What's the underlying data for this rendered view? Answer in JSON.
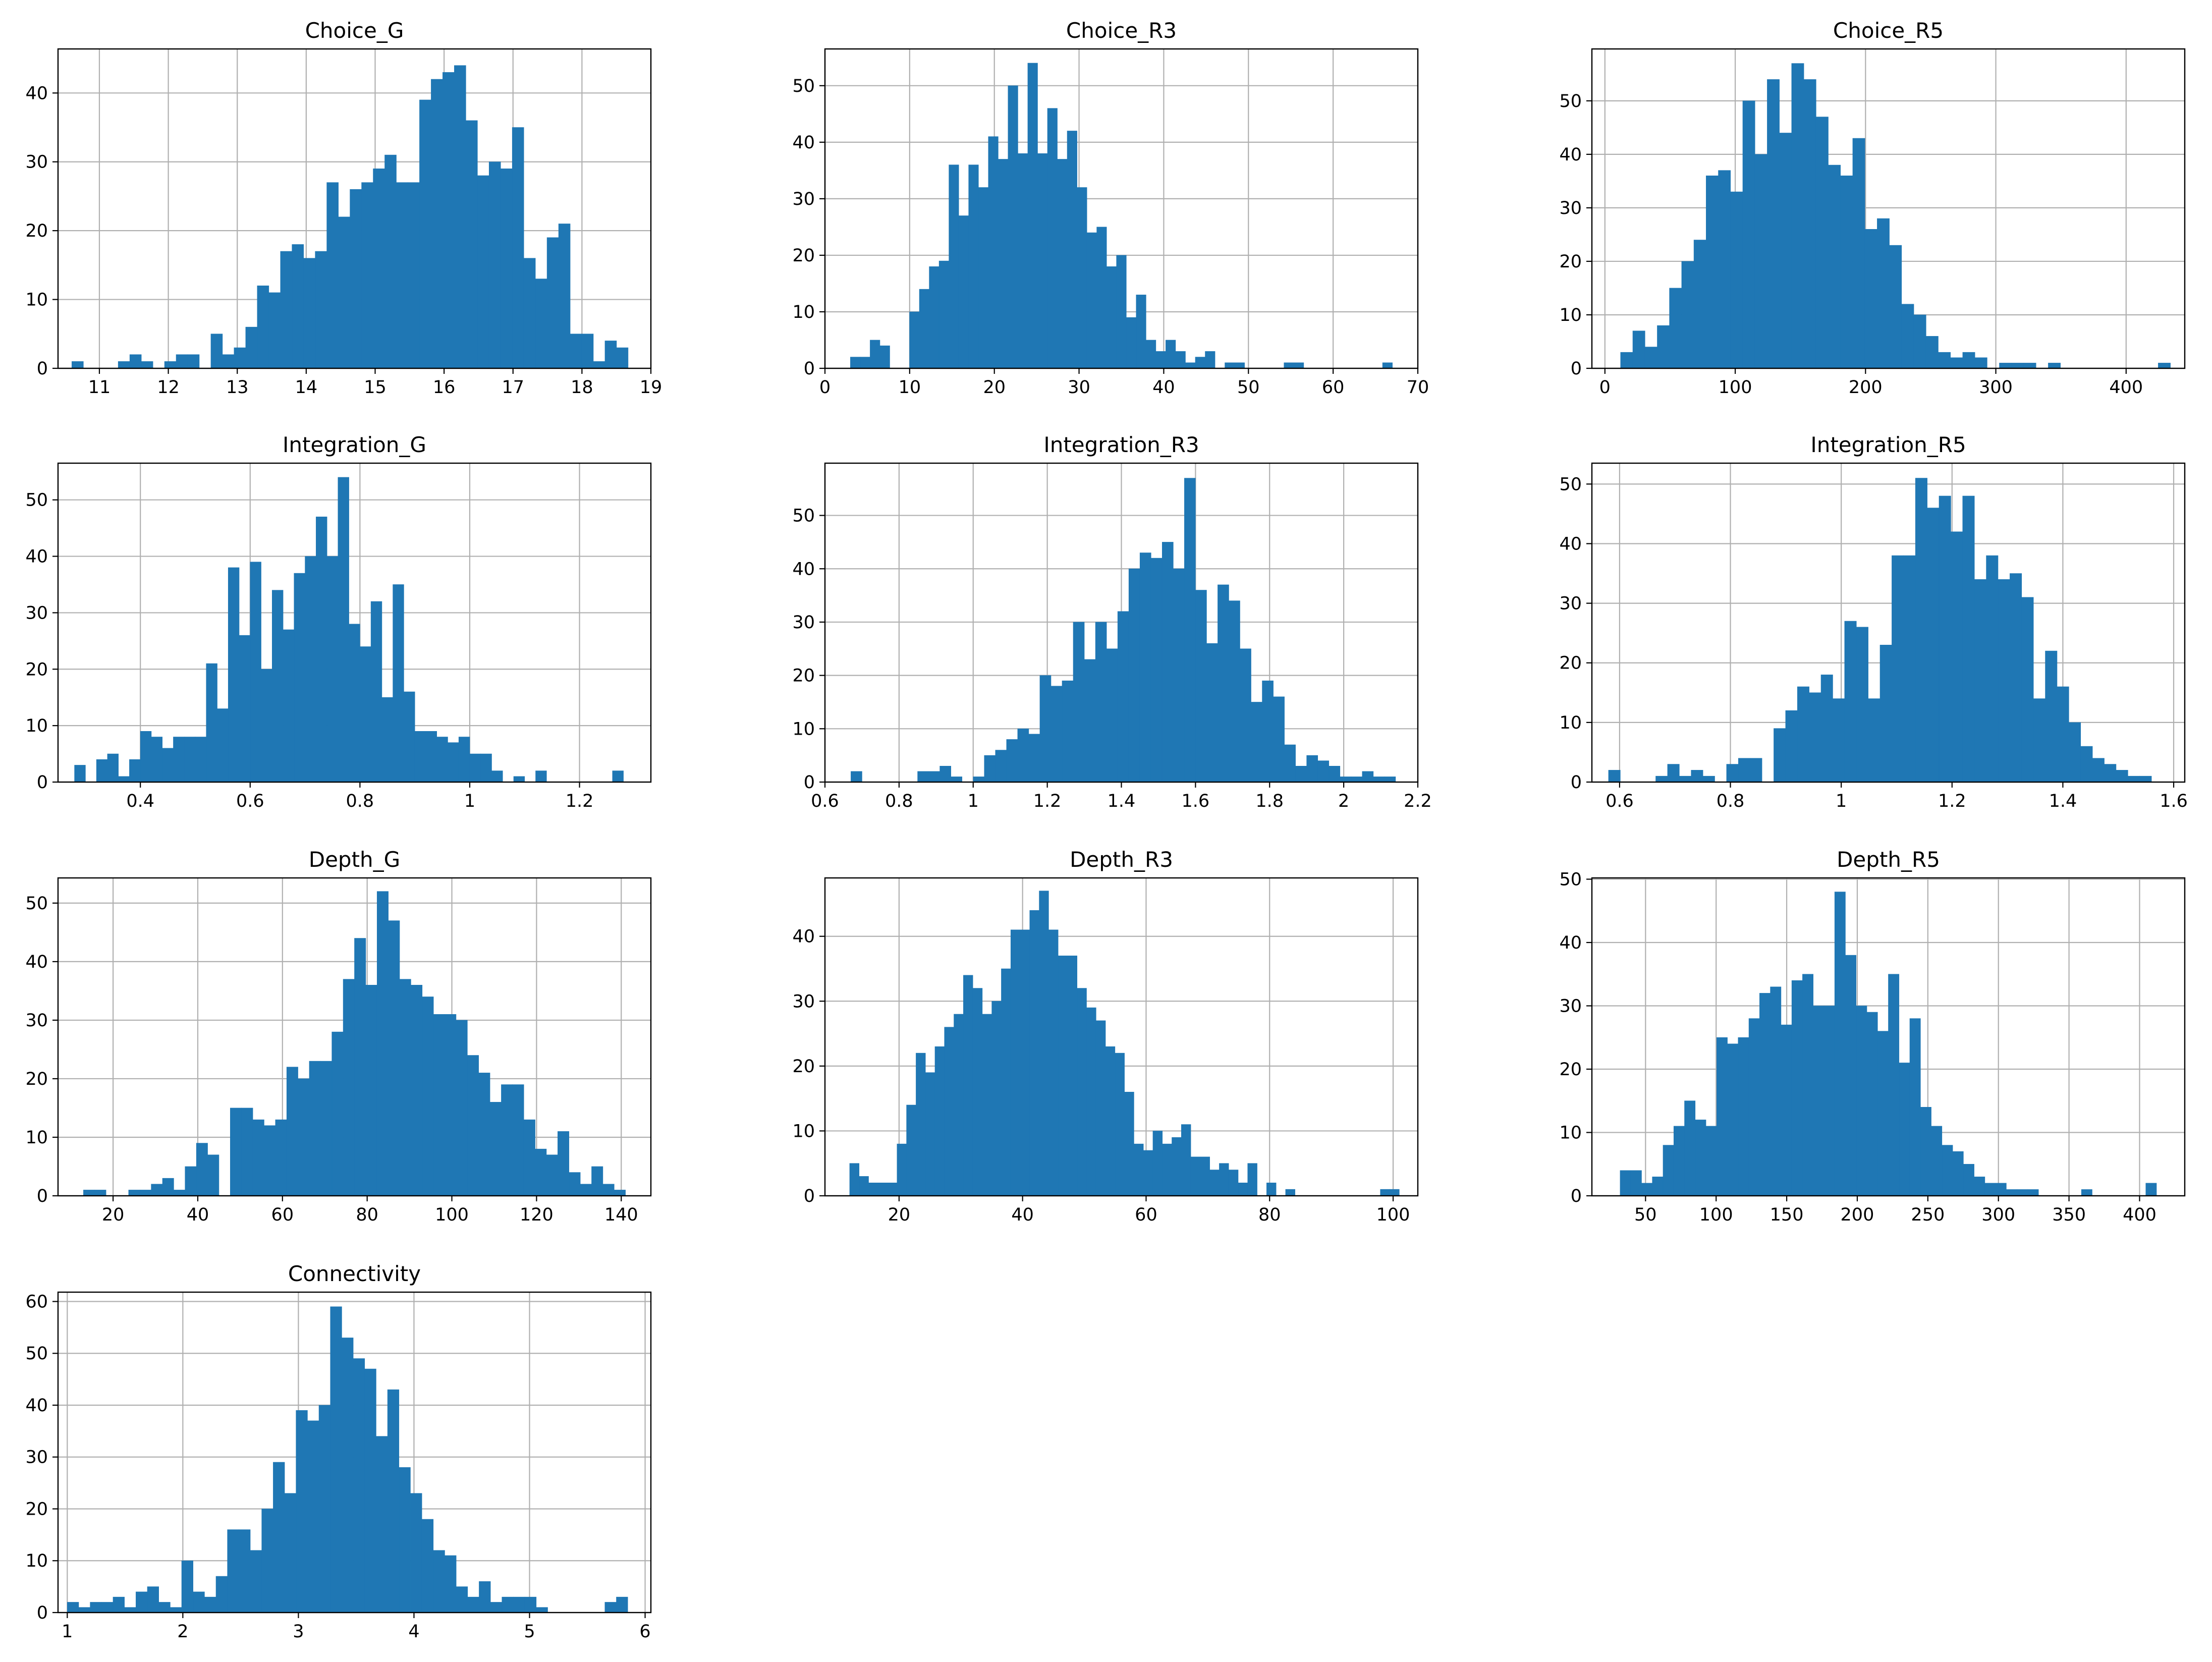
{
  "figure": {
    "bar_color": "#1f77b4",
    "grid_color": "#b0b0b0",
    "background": "#ffffff"
  },
  "chart_data": [
    {
      "type": "bar",
      "title": "Choice_G",
      "xlabel": "",
      "ylabel": "",
      "grid": true,
      "xlim": [
        10.4,
        19
      ],
      "ylim": [
        0,
        46.4
      ],
      "xticks": [
        11,
        12,
        13,
        14,
        15,
        16,
        17,
        18,
        19
      ],
      "yticks": [
        0,
        10,
        20,
        30,
        40
      ],
      "bins": [
        10.6,
        18.67
      ],
      "counts": [
        1,
        0,
        0,
        0,
        1,
        2,
        1,
        0,
        1,
        2,
        2,
        0,
        5,
        2,
        3,
        6,
        12,
        11,
        17,
        18,
        16,
        17,
        27,
        22,
        26,
        27,
        29,
        31,
        27,
        27,
        39,
        42,
        43,
        44,
        36,
        28,
        30,
        29,
        35,
        16,
        13,
        19,
        21,
        5,
        5,
        1,
        4,
        3
      ]
    },
    {
      "type": "bar",
      "title": "Choice_R3",
      "xlabel": "",
      "ylabel": "",
      "grid": true,
      "xlim": [
        0,
        70
      ],
      "ylim": [
        0,
        56.5
      ],
      "xticks": [
        0,
        10,
        20,
        30,
        40,
        50,
        60,
        70
      ],
      "yticks": [
        0,
        10,
        20,
        30,
        40,
        50
      ],
      "bins": [
        3.0,
        67.0
      ],
      "counts": [
        2,
        2,
        5,
        4,
        0,
        0,
        10,
        14,
        18,
        19,
        36,
        27,
        36,
        32,
        41,
        37,
        50,
        38,
        54,
        38,
        46,
        37,
        42,
        32,
        24,
        25,
        18,
        20,
        9,
        13,
        5,
        3,
        5,
        3,
        1,
        2,
        3,
        0,
        1,
        1,
        0,
        0,
        0,
        0,
        1,
        1,
        0,
        0,
        0,
        0,
        0,
        0,
        0,
        0,
        1
      ]
    },
    {
      "type": "bar",
      "title": "Choice_R5",
      "xlabel": "",
      "ylabel": "",
      "grid": true,
      "xlim": [
        -10,
        445
      ],
      "ylim": [
        0,
        59.7
      ],
      "xticks": [
        0,
        100,
        200,
        300,
        400
      ],
      "yticks": [
        0,
        10,
        20,
        30,
        40,
        50
      ],
      "bins": [
        12.0,
        434.0
      ],
      "counts": [
        3,
        7,
        4,
        8,
        15,
        20,
        24,
        36,
        37,
        33,
        50,
        40,
        54,
        44,
        57,
        54,
        47,
        38,
        36,
        43,
        26,
        28,
        23,
        12,
        10,
        6,
        3,
        2,
        3,
        2,
        0,
        1,
        1,
        1,
        0,
        1,
        0,
        0,
        0,
        0,
        0,
        0,
        0,
        0,
        1
      ]
    },
    {
      "type": "bar",
      "title": "Integration_G",
      "xlabel": "",
      "ylabel": "",
      "grid": true,
      "xlim": [
        0.25,
        1.33
      ],
      "ylim": [
        0,
        56.5
      ],
      "xticks": [
        0.4,
        0.6,
        0.8,
        1.0,
        1.2
      ],
      "yticks": [
        0,
        10,
        20,
        30,
        40,
        50
      ],
      "bins": [
        0.28,
        1.28
      ],
      "counts": [
        3,
        0,
        4,
        5,
        1,
        4,
        9,
        8,
        6,
        8,
        8,
        8,
        21,
        13,
        38,
        26,
        39,
        20,
        34,
        27,
        37,
        40,
        47,
        40,
        54,
        28,
        24,
        32,
        15,
        35,
        16,
        9,
        9,
        8,
        7,
        8,
        5,
        5,
        2,
        0,
        1,
        0,
        2,
        0,
        0,
        0,
        0,
        0,
        0,
        2
      ]
    },
    {
      "type": "bar",
      "title": "Integration_R3",
      "xlabel": "",
      "ylabel": "",
      "grid": true,
      "xlim": [
        0.6,
        2.2
      ],
      "ylim": [
        0,
        59.8
      ],
      "xticks": [
        0.6,
        0.8,
        1.0,
        1.2,
        1.4,
        1.6,
        1.8,
        2.0,
        2.2
      ],
      "yticks": [
        0,
        10,
        20,
        30,
        40,
        50
      ],
      "bins": [
        0.67,
        2.14
      ],
      "counts": [
        2,
        0,
        0,
        0,
        0,
        0,
        2,
        2,
        3,
        1,
        0,
        1,
        5,
        6,
        8,
        10,
        9,
        20,
        18,
        19,
        30,
        23,
        30,
        25,
        32,
        40,
        43,
        42,
        45,
        40,
        57,
        36,
        26,
        37,
        34,
        25,
        15,
        19,
        16,
        7,
        3,
        5,
        4,
        3,
        1,
        1,
        2,
        1,
        1
      ]
    },
    {
      "type": "bar",
      "title": "Integration_R5",
      "xlabel": "",
      "ylabel": "",
      "grid": true,
      "xlim": [
        0.55,
        1.62
      ],
      "ylim": [
        0,
        53.5
      ],
      "xticks": [
        0.6,
        0.8,
        1.0,
        1.2,
        1.4,
        1.6
      ],
      "yticks": [
        0,
        10,
        20,
        30,
        40,
        50
      ],
      "bins": [
        0.58,
        1.56
      ],
      "counts": [
        2,
        0,
        0,
        0,
        1,
        3,
        1,
        2,
        1,
        0,
        3,
        4,
        4,
        0,
        9,
        12,
        16,
        15,
        18,
        14,
        27,
        26,
        14,
        23,
        38,
        38,
        51,
        46,
        48,
        42,
        48,
        34,
        38,
        34,
        35,
        31,
        14,
        22,
        16,
        10,
        6,
        4,
        3,
        2,
        1,
        1
      ]
    },
    {
      "type": "bar",
      "title": "Depth_G",
      "xlabel": "",
      "ylabel": "",
      "grid": true,
      "xlim": [
        7,
        147
      ],
      "ylim": [
        0,
        54.3
      ],
      "xticks": [
        20,
        40,
        60,
        80,
        100,
        120,
        140
      ],
      "yticks": [
        0,
        10,
        20,
        30,
        40,
        50
      ],
      "bins": [
        13.0,
        141.0
      ],
      "counts": [
        1,
        1,
        0,
        0,
        1,
        1,
        2,
        3,
        1,
        5,
        9,
        7,
        0,
        15,
        15,
        13,
        12,
        13,
        22,
        20,
        23,
        23,
        28,
        37,
        44,
        36,
        52,
        47,
        37,
        36,
        34,
        31,
        31,
        30,
        24,
        21,
        16,
        19,
        19,
        13,
        8,
        7,
        11,
        4,
        2,
        5,
        2,
        1
      ]
    },
    {
      "type": "bar",
      "title": "Depth_R3",
      "xlabel": "",
      "ylabel": "",
      "grid": true,
      "xlim": [
        8,
        104
      ],
      "ylim": [
        0,
        49
      ],
      "xticks": [
        20,
        40,
        60,
        80,
        100
      ],
      "yticks": [
        0,
        10,
        20,
        30,
        40
      ],
      "bins": [
        12.0,
        101.0
      ],
      "counts": [
        5,
        3,
        2,
        2,
        2,
        8,
        14,
        22,
        19,
        23,
        26,
        28,
        34,
        32,
        28,
        30,
        35,
        41,
        41,
        44,
        47,
        41,
        37,
        37,
        32,
        29,
        27,
        23,
        22,
        16,
        8,
        7,
        10,
        8,
        9,
        11,
        6,
        6,
        4,
        5,
        4,
        2,
        5,
        0,
        2,
        0,
        1,
        0,
        0,
        0,
        0,
        0,
        0,
        0,
        0,
        0,
        1,
        1
      ]
    },
    {
      "type": "bar",
      "title": "Depth_R5",
      "xlabel": "",
      "ylabel": "",
      "grid": true,
      "xlim": [
        12,
        432
      ],
      "ylim": [
        0,
        50.2
      ],
      "xticks": [
        50,
        100,
        150,
        200,
        250,
        300,
        350,
        400
      ],
      "yticks": [
        0,
        10,
        20,
        30,
        40,
        50
      ],
      "bins": [
        32.0,
        412.0
      ],
      "counts": [
        4,
        4,
        2,
        3,
        8,
        11,
        15,
        12,
        11,
        25,
        24,
        25,
        28,
        32,
        33,
        27,
        34,
        35,
        30,
        30,
        48,
        38,
        30,
        29,
        26,
        35,
        21,
        28,
        14,
        11,
        8,
        7,
        5,
        3,
        2,
        2,
        1,
        1,
        1,
        0,
        0,
        0,
        0,
        1,
        0,
        0,
        0,
        0,
        0,
        2
      ]
    },
    {
      "type": "bar",
      "title": "Connectivity",
      "xlabel": "",
      "ylabel": "",
      "grid": true,
      "xlim": [
        0.92,
        6.05
      ],
      "ylim": [
        0,
        61.8
      ],
      "xticks": [
        1,
        2,
        3,
        4,
        5,
        6
      ],
      "yticks": [
        0,
        10,
        20,
        30,
        40,
        50,
        60
      ],
      "bins": [
        1.0,
        5.85
      ],
      "counts": [
        2,
        1,
        2,
        2,
        3,
        1,
        4,
        5,
        2,
        1,
        10,
        4,
        3,
        7,
        16,
        16,
        12,
        20,
        29,
        23,
        39,
        37,
        40,
        59,
        53,
        49,
        47,
        34,
        43,
        28,
        23,
        18,
        12,
        11,
        5,
        3,
        6,
        2,
        3,
        3,
        3,
        1,
        0,
        0,
        0,
        0,
        0,
        2,
        3
      ]
    }
  ]
}
